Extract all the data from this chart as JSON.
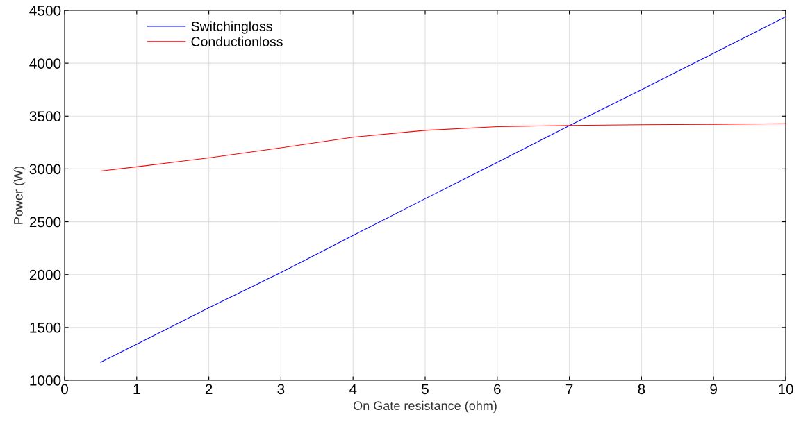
{
  "chart_data": {
    "type": "line",
    "xlabel": "On Gate resistance (ohm)",
    "ylabel": "Power (W)",
    "x": [
      0.5,
      1,
      2,
      3,
      4,
      5,
      6,
      7,
      8,
      9,
      10
    ],
    "series": [
      {
        "name": "Switchingloss",
        "color": "#0000ff",
        "values": [
          1170,
          1342,
          1686,
          2020,
          2370,
          2718,
          3062,
          3410,
          3750,
          4094,
          4440
        ]
      },
      {
        "name": "Conductionloss",
        "color": "#ff0000",
        "values": [
          2980,
          3020,
          3105,
          3200,
          3300,
          3365,
          3400,
          3412,
          3418,
          3422,
          3428
        ]
      }
    ],
    "xlim": [
      0,
      10
    ],
    "ylim": [
      1000,
      4500
    ],
    "xticks": [
      0,
      1,
      2,
      3,
      4,
      5,
      6,
      7,
      8,
      9,
      10
    ],
    "yticks": [
      1000,
      1500,
      2000,
      2500,
      3000,
      3500,
      4000,
      4500
    ],
    "grid": true,
    "legend": "top left",
    "marker": "none",
    "line_style": "solid"
  }
}
